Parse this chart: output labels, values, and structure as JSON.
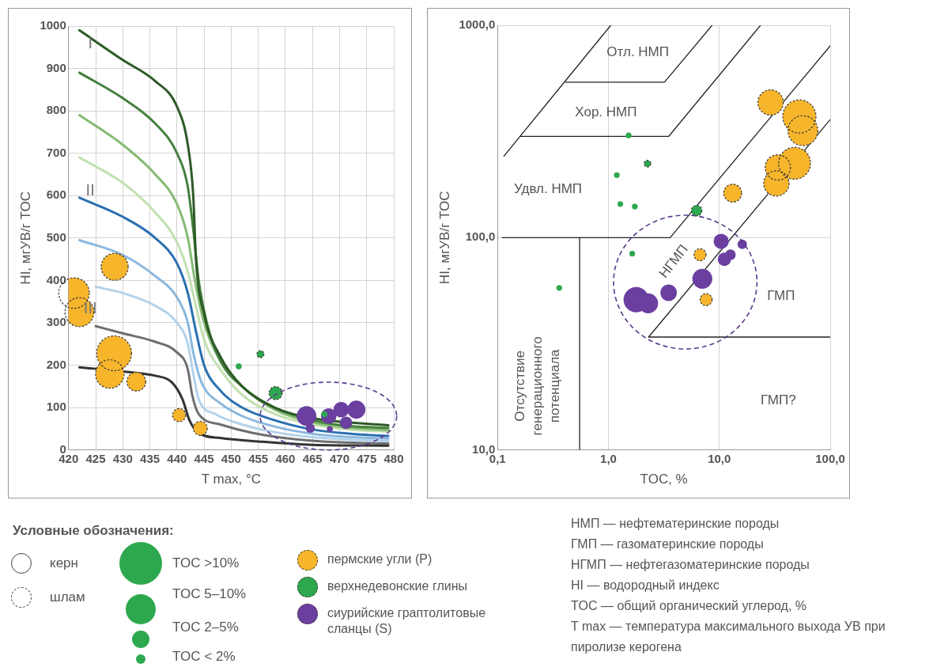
{
  "chart_data": [
    {
      "type": "bubble",
      "xlabel": "T max, °C",
      "ylabel": "HI, мгУВ/г TOC",
      "xlim": [
        420,
        480
      ],
      "xticks": [
        420,
        425,
        430,
        435,
        440,
        445,
        450,
        455,
        460,
        465,
        470,
        475,
        480
      ],
      "ylim": [
        0,
        1000
      ],
      "yticks": [
        0,
        100,
        200,
        300,
        400,
        500,
        600,
        700,
        800,
        900,
        1000
      ],
      "grid": true,
      "legend": "bottom",
      "series": [
        {
          "name": "пермские угли (P)",
          "type": "bubble",
          "color": "#f7b52c",
          "line_style": "dashed",
          "x": [
            421,
            422,
            428.5,
            428.4,
            427.6,
            432.5,
            440.4,
            444.3
          ],
          "values": [
            370,
            325,
            432,
            228,
            179,
            161,
            82,
            51
          ],
          "sizes": [
            0.77,
            0.69,
            0.6,
            1,
            0.67,
            0.29,
            0.14,
            0.16
          ]
        },
        {
          "name": "верхнедевонские глины",
          "type": "bubble",
          "color": "#2ea84e",
          "line_style": "dashed",
          "x": [
            451.4,
            455.4,
            458.2,
            467.2
          ],
          "values": [
            197,
            226,
            134,
            84
          ],
          "sizes": [
            0.03,
            0.04,
            0.14,
            0.03
          ]
        },
        {
          "name": "сиурийские граптолитовые сланцы (S)",
          "type": "bubble",
          "color": "#6a3fa0",
          "x": [
            463.9,
            464.6,
            468,
            470.3,
            473.1,
            471.2,
            468.2
          ],
          "values": [
            80,
            51,
            80,
            95,
            95,
            64,
            49
          ],
          "sizes": [
            0.32,
            0.07,
            0.2,
            0.2,
            0.27,
            0.13,
            0.03
          ]
        },
        {
          "type": "line",
          "color": "#2d5a27",
          "x": [
            422,
            430,
            436,
            440,
            442,
            443,
            443.5,
            445,
            448,
            452,
            458,
            465,
            479
          ],
          "values": [
            990,
            920,
            870,
            810,
            720,
            600,
            450,
            320,
            220,
            150,
            100,
            75,
            58
          ]
        },
        {
          "type": "line",
          "color": "#44803d",
          "x": [
            422,
            430,
            436,
            440,
            442,
            443,
            444,
            445.5,
            448,
            452,
            458,
            465,
            472,
            479
          ],
          "values": [
            890,
            830,
            770,
            700,
            620,
            520,
            400,
            300,
            210,
            150,
            100,
            70,
            56,
            52
          ]
        },
        {
          "type": "line",
          "color": "#86bb74",
          "x": [
            422,
            430,
            436,
            440,
            442,
            443.3,
            445,
            448,
            452,
            458,
            465,
            472,
            479
          ],
          "values": [
            790,
            720,
            650,
            580,
            500,
            400,
            300,
            210,
            150,
            95,
            65,
            52,
            47
          ]
        },
        {
          "type": "line",
          "color": "#c2e0b0",
          "x": [
            422,
            430,
            436,
            440,
            442,
            443.3,
            445,
            448,
            452,
            458,
            465,
            472,
            479
          ],
          "values": [
            690,
            630,
            560,
            490,
            420,
            350,
            260,
            190,
            130,
            85,
            60,
            48,
            43
          ]
        },
        {
          "type": "line",
          "color": "#2a6fb0",
          "x": [
            422,
            430,
            436,
            440,
            442,
            443.5,
            445,
            448,
            452,
            458,
            465,
            472,
            479
          ],
          "values": [
            595,
            550,
            500,
            440,
            370,
            280,
            200,
            140,
            100,
            70,
            48,
            38,
            33
          ]
        },
        {
          "type": "line",
          "color": "#8ab8df",
          "x": [
            422,
            430,
            436,
            440,
            442,
            443,
            444.5,
            448,
            452,
            458,
            465,
            472,
            479
          ],
          "values": [
            495,
            460,
            410,
            360,
            300,
            230,
            160,
            110,
            80,
            55,
            38,
            30,
            27
          ]
        },
        {
          "type": "line",
          "color": "#b3d2ea",
          "x": [
            425,
            430,
            436,
            440,
            442,
            443,
            444,
            447,
            452,
            458,
            465,
            472,
            479
          ],
          "values": [
            385,
            370,
            340,
            300,
            250,
            180,
            120,
            85,
            60,
            42,
            30,
            24,
            21
          ]
        },
        {
          "type": "line",
          "color": "#6d6e70",
          "x": [
            425,
            430,
            436,
            440,
            442,
            442.8,
            444,
            448,
            454,
            462,
            470,
            479
          ],
          "values": [
            292,
            275,
            255,
            230,
            190,
            130,
            85,
            60,
            40,
            25,
            18,
            15
          ]
        },
        {
          "type": "line",
          "color": "#333333",
          "x": [
            422,
            430,
            436,
            439,
            441,
            442.3,
            444,
            448,
            455,
            465,
            479
          ],
          "values": [
            195,
            185,
            175,
            160,
            120,
            70,
            40,
            28,
            20,
            12,
            10
          ]
        }
      ],
      "annotations": [
        "I",
        "II",
        "III"
      ]
    },
    {
      "type": "bubble",
      "log": "xy",
      "xlabel": "TOC, %",
      "ylabel": "HI, мгУВ/г TOC",
      "xlim": [
        0.1,
        100
      ],
      "xticks": [
        {
          "value": 0.1,
          "label": "0,1"
        },
        {
          "value": 1,
          "label": "1,0"
        },
        {
          "value": 10,
          "label": "10,0"
        },
        {
          "value": 100,
          "label": "100,0"
        }
      ],
      "ylim": [
        10,
        1000
      ],
      "yticks": [
        {
          "value": 10,
          "label": "10,0"
        },
        {
          "value": 100,
          "label": "100,0"
        },
        {
          "value": 1000,
          "label": "1000,0"
        }
      ],
      "grid": true,
      "series": [
        {
          "type": "line",
          "color": "#222222",
          "x": [
            0.114,
            1.05
          ],
          "values": [
            242,
            1000
          ]
        },
        {
          "type": "line",
          "color": "#222222",
          "x": [
            0.41,
            3.2,
            8.6
          ],
          "values": [
            540,
            540,
            1000
          ]
        },
        {
          "type": "line",
          "color": "#222222",
          "x": [
            0.16,
            3.5,
            23.5
          ],
          "values": [
            300,
            300,
            1000
          ]
        },
        {
          "type": "line",
          "color": "#222222",
          "x": [
            0.11,
            3.6,
            100
          ],
          "values": [
            100,
            100,
            800
          ]
        },
        {
          "type": "line",
          "color": "#222222",
          "x": [
            100,
            2.3,
            100
          ],
          "values": [
            360,
            34,
            34
          ]
        },
        {
          "type": "line",
          "color": "#222222",
          "x": [
            0.55,
            0.55
          ],
          "values": [
            100,
            10
          ]
        },
        {
          "type": "bubble",
          "color": "#f7b52c",
          "line_style": "dashed",
          "x": [
            29,
            52.7,
            56.7,
            47.7,
            33.7,
            32.7,
            13.2,
            6.7,
            7.6
          ],
          "values": [
            433,
            372,
            319,
            224,
            214,
            180,
            162,
            83,
            51
          ],
          "sizes": [
            0.58,
            1,
            0.81,
            0.92,
            0.58,
            0.58,
            0.29,
            0.13,
            0.13
          ]
        },
        {
          "type": "bubble",
          "color": "#2ea84e",
          "line_style": "dashed",
          "x": [
            1.52,
            2.25,
            1.19,
            1.28,
            1.73,
            6.24,
            1.64,
            0.36
          ],
          "values": [
            303,
            223,
            197,
            144,
            140,
            134,
            84,
            58
          ],
          "sizes": [
            0.03,
            0.04,
            0.03,
            0.03,
            0.03,
            0.1,
            0.03,
            0.03
          ]
        },
        {
          "type": "bubble",
          "color": "#6a3fa0",
          "x": [
            1.78,
            2.28,
            3.49,
            7.03,
            10.4,
            12.6,
            11.1,
            16.1
          ],
          "values": [
            51,
            49,
            55,
            64,
            96,
            83,
            79,
            93
          ],
          "sizes": [
            0.58,
            0.36,
            0.25,
            0.36,
            0.21,
            0.1,
            0.16,
            0.08
          ]
        }
      ],
      "annotations": [
        "Отл. НМП",
        "Хор. НМП",
        "Удвл. НМП",
        "НГМП",
        "ГМП",
        "ГМП?",
        "Отсутствие генерационного потенциала"
      ]
    },
    {
      "type": "other",
      "title": "Условные обозначения:",
      "annotations": [
        "керн",
        "шлам",
        "TOC >10%",
        "TOC 5–10%",
        "TOC 2–5%",
        "TOC < 2%",
        "НМП — нефтематеринские породы",
        "ГМП — газоматеринские породы",
        "НГМП — нефтегазоматеринские породы",
        "HI — водородный индекс",
        "TOC — общий органический углерод, %",
        "T max — температура максимального выхода УВ при пиролизе керогена"
      ]
    }
  ]
}
